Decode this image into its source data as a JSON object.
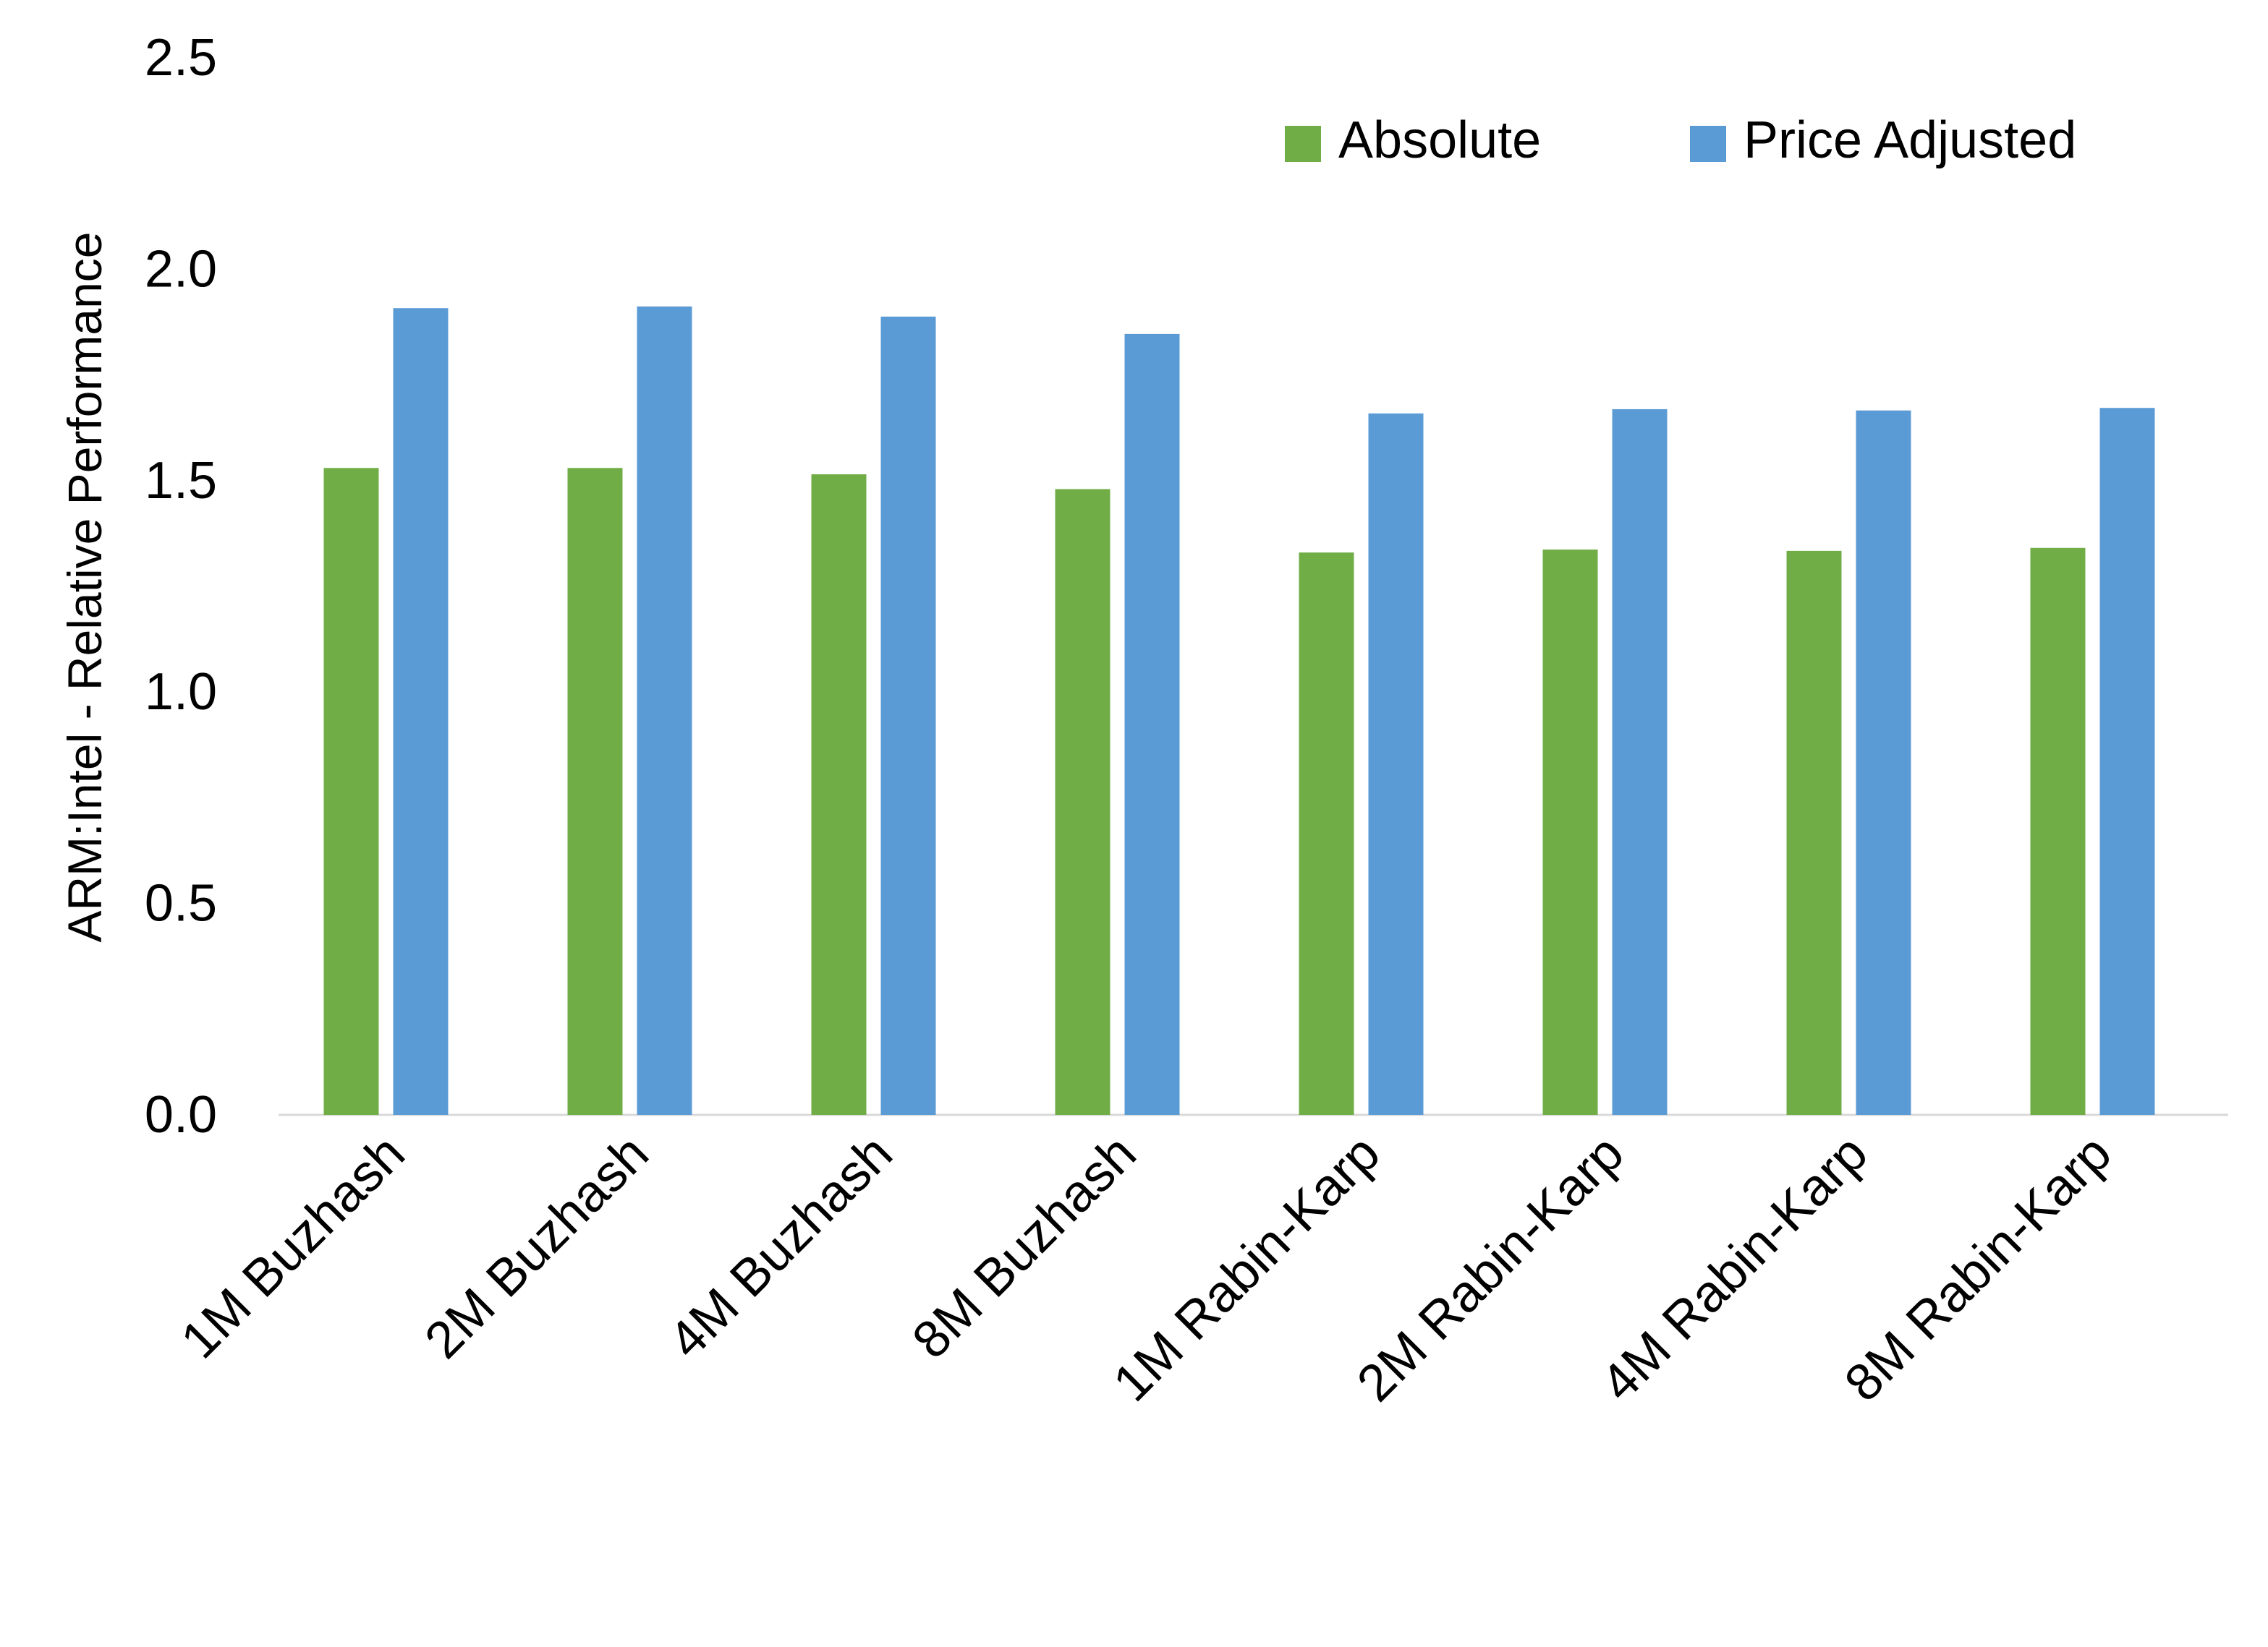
{
  "chart_data": {
    "type": "bar",
    "title": "",
    "xlabel": "",
    "ylabel": "ARM:Intel - Relative Performance",
    "ylim": [
      0,
      2.5
    ],
    "yticks": [
      "0.0",
      "0.5",
      "1.0",
      "1.5",
      "2.0",
      "2.5"
    ],
    "grid": false,
    "legend_position": "top-right",
    "categories": [
      "1M Buzhash",
      "2M Buzhash",
      "4M Buzhash",
      "8M Buzhash",
      "1M Rabin-Karp",
      "2M Rabin-Karp",
      "4M Rabin-Karp",
      "8M Rabin-Karp"
    ],
    "series": [
      {
        "name": "Absolute",
        "color": "#70AD47",
        "values": [
          1.53,
          1.53,
          1.515,
          1.48,
          1.33,
          1.337,
          1.334,
          1.341
        ]
      },
      {
        "name": "Price Adjusted",
        "color": "#5B9BD5",
        "values": [
          1.908,
          1.912,
          1.888,
          1.847,
          1.659,
          1.669,
          1.666,
          1.672
        ]
      }
    ]
  }
}
